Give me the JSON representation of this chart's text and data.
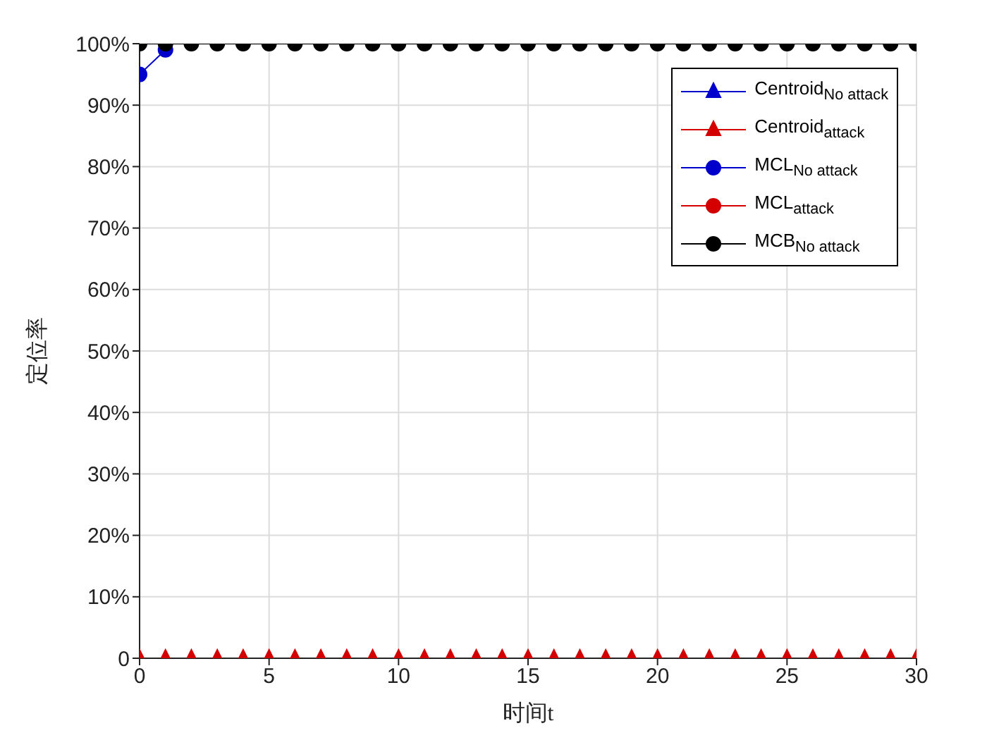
{
  "chart_data": {
    "type": "line",
    "xlabel": "时间t",
    "ylabel": "定位率",
    "x": [
      0,
      1,
      2,
      3,
      4,
      5,
      6,
      7,
      8,
      9,
      10,
      11,
      12,
      13,
      14,
      15,
      16,
      17,
      18,
      19,
      20,
      21,
      22,
      23,
      24,
      25,
      26,
      27,
      28,
      29,
      30
    ],
    "xlim": [
      0,
      30
    ],
    "xticks": [
      0,
      5,
      10,
      15,
      20,
      25,
      30
    ],
    "ylim": [
      0,
      100
    ],
    "yticks": [
      0,
      {
        "value": 10,
        "label": "10%"
      },
      {
        "value": 20,
        "label": "20%"
      },
      {
        "value": 30,
        "label": "30%"
      },
      {
        "value": 40,
        "label": "40%"
      },
      {
        "value": 50,
        "label": "50%"
      },
      {
        "value": 60,
        "label": "60%"
      },
      {
        "value": 70,
        "label": "70%"
      },
      {
        "value": 80,
        "label": "80%"
      },
      {
        "value": 90,
        "label": "90%"
      },
      {
        "value": 100,
        "label": "100%"
      }
    ],
    "grid": true,
    "legend": "top right",
    "series": [
      {
        "name": "Centroid$_{No attack}$",
        "color": "#0000cc",
        "marker": "triangle",
        "values": [
          null,
          null,
          null,
          null,
          null,
          null,
          null,
          null,
          null,
          null,
          null,
          null,
          null,
          null,
          null,
          null,
          null,
          null,
          null,
          null,
          null,
          null,
          null,
          null,
          null,
          null,
          null,
          null,
          null,
          null,
          null
        ]
      },
      {
        "name": "Centroid$_{attack}$",
        "color": "#d40000",
        "marker": "triangle",
        "values": [
          0,
          0,
          0,
          0,
          0,
          0,
          0,
          0,
          0,
          0,
          0,
          0,
          0,
          0,
          0,
          0,
          0,
          0,
          0,
          0,
          0,
          0,
          0,
          0,
          0,
          0,
          0,
          0,
          0,
          0,
          0
        ]
      },
      {
        "name": "MCL$_{No attack}$",
        "color": "#0000cc",
        "marker": "circle",
        "values": [
          95,
          99,
          null,
          null,
          null,
          null,
          null,
          null,
          null,
          null,
          null,
          null,
          null,
          null,
          null,
          null,
          null,
          null,
          null,
          null,
          null,
          null,
          null,
          null,
          null,
          null,
          null,
          null,
          null,
          null,
          null
        ]
      },
      {
        "name": "MCL$_{attack}$",
        "color": "#d40000",
        "marker": "circle",
        "values": [
          null,
          null,
          null,
          null,
          null,
          null,
          null,
          null,
          null,
          null,
          null,
          null,
          null,
          null,
          null,
          null,
          null,
          null,
          null,
          null,
          null,
          null,
          null,
          null,
          null,
          null,
          null,
          null,
          null,
          null,
          null
        ]
      },
      {
        "name": "MCB$_{No attack}$",
        "color": "#000000",
        "marker": "circle",
        "values": [
          100,
          100,
          100,
          100,
          100,
          100,
          100,
          100,
          100,
          100,
          100,
          100,
          100,
          100,
          100,
          100,
          100,
          100,
          100,
          100,
          100,
          100,
          100,
          100,
          100,
          100,
          100,
          100,
          100,
          100,
          100
        ]
      }
    ]
  }
}
